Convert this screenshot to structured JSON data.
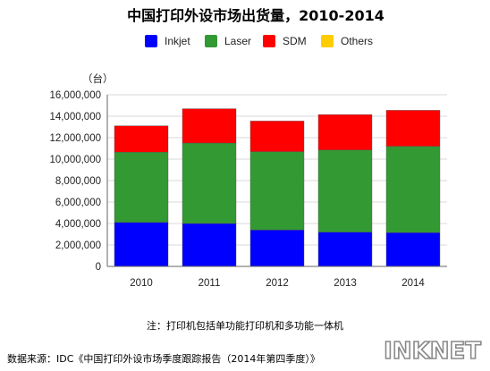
{
  "chart_data": {
    "type": "bar",
    "stacked": true,
    "title": "中国打印外设市场出货量，2010-2014",
    "unit_label": "（台）",
    "categories": [
      "2010",
      "2011",
      "2012",
      "2013",
      "2014"
    ],
    "series": [
      {
        "name": "Inkjet",
        "color": "#0000ff",
        "values": [
          4100000,
          4000000,
          3400000,
          3200000,
          3150000
        ]
      },
      {
        "name": "Laser",
        "color": "#339933",
        "values": [
          6550000,
          7500000,
          7300000,
          7650000,
          8050000
        ]
      },
      {
        "name": "SDM",
        "color": "#ff0000",
        "values": [
          2450000,
          3200000,
          2850000,
          3300000,
          3350000
        ]
      },
      {
        "name": "Others",
        "color": "#ffcc00",
        "values": [
          0,
          0,
          0,
          0,
          0
        ]
      }
    ],
    "ylim": [
      0,
      16000000
    ],
    "yticks": [
      "0",
      "2,000,000",
      "4,000,000",
      "6,000,000",
      "8,000,000",
      "10,000,000",
      "12,000,000",
      "14,000,000",
      "16,000,000"
    ],
    "grid": true,
    "legend_position": "top"
  },
  "note": "注：打印机包括单功能打印机和多功能一体机",
  "source": "数据来源：IDC《中国打印外设市场季度跟踪报告（2014年第四季度）》",
  "logo_text": "INKNET"
}
